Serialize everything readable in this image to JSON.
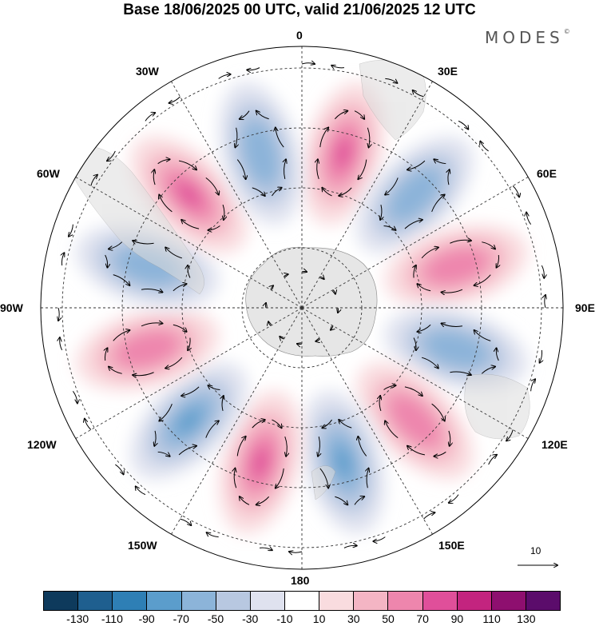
{
  "title": "Base 18/06/2025 00 UTC, valid 21/06/2025 12 UTC",
  "brand": "MODES",
  "brand_mark": "©",
  "map_labels": {
    "top": "0",
    "bottom": "180",
    "left": "90W",
    "right": "90E",
    "w30": "30W",
    "e30": "30E",
    "w60": "60W",
    "e60": "60E",
    "w120": "120W",
    "e120": "120E",
    "w150": "150W",
    "e150": "150E"
  },
  "reference_vector": {
    "label": "10"
  },
  "colorbar": {
    "colors": [
      "#0e3a5c",
      "#1f5f8f",
      "#2e7fb5",
      "#5b9dcc",
      "#8cb4d9",
      "#b8c8e1",
      "#dfe2ef",
      "#ffffff",
      "#f9dcdf",
      "#f4b5c4",
      "#ee86ad",
      "#e04f9a",
      "#c3247f",
      "#8e0f6f",
      "#5b0c6b"
    ],
    "ticks": [
      "-130",
      "-110",
      "-90",
      "-70",
      "-50",
      "-30",
      "-10",
      "10",
      "30",
      "50",
      "70",
      "90",
      "110",
      "130"
    ]
  },
  "anomaly_cells": [
    {
      "sign": "pos",
      "strength": 0.8
    },
    {
      "sign": "neg",
      "strength": 0.6
    },
    {
      "sign": "pos",
      "strength": 0.7
    },
    {
      "sign": "neg",
      "strength": 0.7
    },
    {
      "sign": "pos",
      "strength": 0.6
    },
    {
      "sign": "neg",
      "strength": 0.8
    },
    {
      "sign": "pos",
      "strength": 0.9
    },
    {
      "sign": "neg",
      "strength": 0.9
    },
    {
      "sign": "pos",
      "strength": 0.7
    },
    {
      "sign": "neg",
      "strength": 0.7
    },
    {
      "sign": "pos",
      "strength": 0.8
    },
    {
      "sign": "neg",
      "strength": 0.7
    }
  ]
}
